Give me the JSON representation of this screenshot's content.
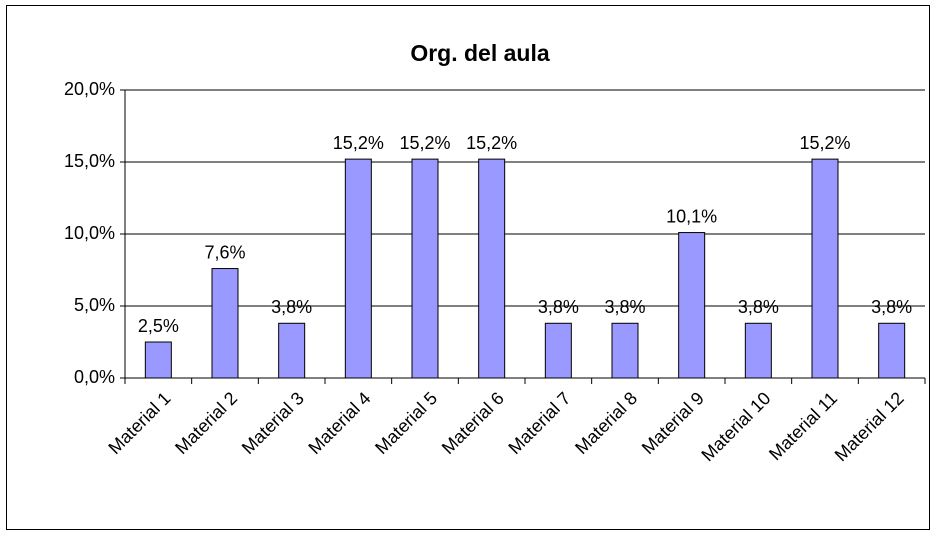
{
  "chart_data": {
    "type": "bar",
    "title": "Org. del aula",
    "categories": [
      "Material 1",
      "Material 2",
      "Material 3",
      "Material 4",
      "Material 5",
      "Material 6",
      "Material 7",
      "Material 8",
      "Material 9",
      "Material 10",
      "Material 11",
      "Material 12"
    ],
    "values": [
      2.5,
      7.6,
      3.8,
      15.2,
      15.2,
      15.2,
      3.8,
      3.8,
      10.1,
      3.8,
      15.2,
      3.8
    ],
    "value_labels": [
      "2,5%",
      "7,6%",
      "3,8%",
      "15,2%",
      "15,2%",
      "15,2%",
      "3,8%",
      "3,8%",
      "10,1%",
      "3,8%",
      "15,2%",
      "3,8%"
    ],
    "color": "#9999ff",
    "ylim": [
      0,
      20
    ],
    "yticks": [
      {
        "value": 0,
        "label": "0,0%"
      },
      {
        "value": 5,
        "label": "5,0%"
      },
      {
        "value": 10,
        "label": "10,0%"
      },
      {
        "value": 15,
        "label": "15,0%"
      },
      {
        "value": 20,
        "label": "20,0%"
      }
    ],
    "grid": true
  }
}
